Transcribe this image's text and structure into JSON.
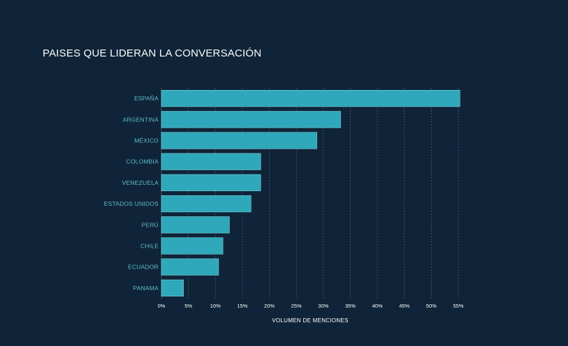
{
  "chart_data": {
    "type": "bar",
    "orientation": "horizontal",
    "title": "PAISES QUE LIDERAN LA CONVERSACIÓN",
    "xlabel": "VOLUMEN DE MENCIONES",
    "ylabel": "",
    "categories": [
      "ESPAÑA",
      "ARGENTINA",
      "MÉXICO",
      "COLOMBIA",
      "VENEZUELA",
      "ESTADOS UNIDOS",
      "PERÚ",
      "CHILE",
      "ECUADOR",
      "PANAMA"
    ],
    "values": [
      55.3,
      33.2,
      28.8,
      18.4,
      18.4,
      16.6,
      12.6,
      11.4,
      10.6,
      4.1
    ],
    "xlim": [
      0,
      55
    ],
    "ticks": [
      "0%",
      "5%",
      "10%",
      "15%",
      "20%",
      "25%",
      "30%",
      "35%",
      "40%",
      "45%",
      "50%",
      "55%"
    ],
    "tick_values": [
      0,
      5,
      10,
      15,
      20,
      25,
      30,
      35,
      40,
      45,
      50,
      55
    ],
    "grid": true,
    "bar_color": "#2ea8ba",
    "bar_edge_color": "#7fd0dc",
    "background_color": "#0f2438",
    "label_color": "#5fbccb"
  }
}
